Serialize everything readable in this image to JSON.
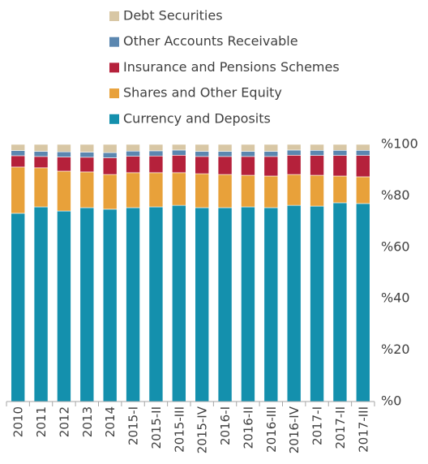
{
  "chart_data": {
    "type": "stacked_bar",
    "categories": [
      "2010",
      "2011",
      "2012",
      "2013",
      "2014",
      "2015-I",
      "2015-II",
      "2015-III",
      "2015-IV",
      "2016-I",
      "2016-II",
      "2016-III",
      "2016-IV",
      "2017-I",
      "2017-II",
      "2017-III"
    ],
    "series": [
      {
        "name": "Currency and Deposits",
        "color": "#1490ad",
        "values": [
          73.2,
          75.7,
          74.1,
          75.4,
          74.8,
          75.4,
          75.7,
          76.3,
          75.4,
          75.4,
          75.7,
          75.4,
          76.3,
          76,
          77.3,
          77
        ]
      },
      {
        "name": "Shares and Other Equity",
        "color": "#e8a13a",
        "values": [
          18,
          15.2,
          15.5,
          13.9,
          13.5,
          13.6,
          13.3,
          12.7,
          13.2,
          12.9,
          12.3,
          12.3,
          12,
          12,
          10.4,
          10.4
        ]
      },
      {
        "name": "Insurance and Pensions Schemes",
        "color": "#b5213b",
        "values": [
          4.4,
          4.4,
          5.5,
          5.7,
          6.5,
          6.4,
          6.5,
          6.8,
          6.7,
          7,
          7.3,
          7.6,
          7.5,
          7.7,
          8,
          8.3
        ]
      },
      {
        "name": "Other Accounts Receivable",
        "color": "#5b87b0",
        "values": [
          2,
          2,
          2,
          2,
          2,
          2,
          2,
          2,
          2,
          2,
          2,
          2,
          2,
          2,
          2,
          2
        ]
      },
      {
        "name": "Debt Securities",
        "color": "#d8c7a5",
        "values": [
          2.4,
          2.7,
          2.9,
          3,
          3.2,
          2.6,
          2.5,
          2.2,
          2.7,
          2.7,
          2.7,
          2.7,
          2.2,
          2.3,
          2.3,
          2.3
        ]
      }
    ],
    "ylim": [
      0,
      100
    ],
    "yticks": [
      {
        "value": 0,
        "label": "%0"
      },
      {
        "value": 20,
        "label": "%20"
      },
      {
        "value": 40,
        "label": "%40"
      },
      {
        "value": 60,
        "label": "%60"
      },
      {
        "value": 80,
        "label": "%80"
      },
      {
        "value": 100,
        "label": "%100"
      }
    ],
    "legend": "top"
  }
}
